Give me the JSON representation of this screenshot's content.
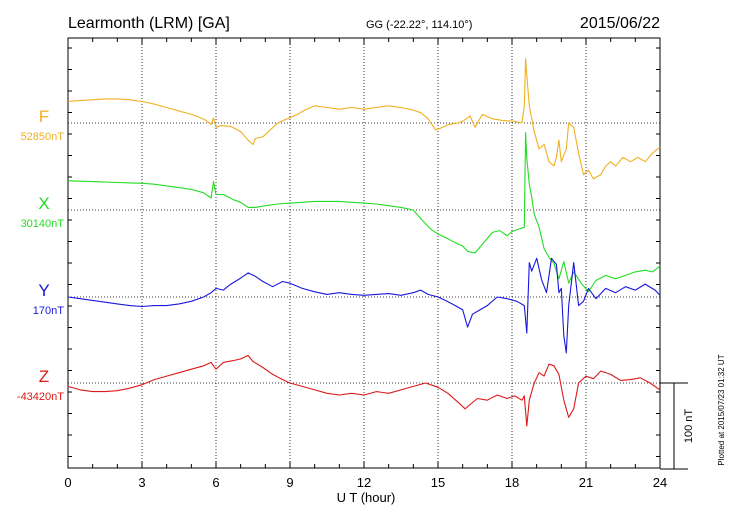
{
  "header": {
    "station": "Learmonth (LRM)  [GA]",
    "coords": "GG (-22.22°, 114.10°)",
    "date": "2015/06/22"
  },
  "footer": {
    "plotted": "Plotted at 2015/07/23 01:32 UT"
  },
  "scale": {
    "label": "100 nT"
  },
  "chart_data": {
    "type": "line",
    "xlabel": "U T (hour)",
    "xlim": [
      0,
      24
    ],
    "xticks": [
      "0",
      "3",
      "6",
      "9",
      "12",
      "15",
      "18",
      "21",
      "24"
    ],
    "grid": true,
    "y_units": "nT offset from baseline",
    "series": [
      {
        "name": "F",
        "baseline_label": "52850nT",
        "color": "#f0b020",
        "points": [
          [
            0,
            25
          ],
          [
            0.5,
            26
          ],
          [
            1,
            27
          ],
          [
            1.5,
            28
          ],
          [
            2,
            28
          ],
          [
            2.5,
            27
          ],
          [
            3,
            25
          ],
          [
            3.5,
            22
          ],
          [
            4,
            18
          ],
          [
            4.5,
            14
          ],
          [
            5,
            10
          ],
          [
            5.3,
            7
          ],
          [
            5.6,
            3
          ],
          [
            5.8,
            -2
          ],
          [
            5.9,
            6
          ],
          [
            6.0,
            -5
          ],
          [
            6.2,
            -3
          ],
          [
            6.6,
            -4
          ],
          [
            7,
            -10
          ],
          [
            7.3,
            -20
          ],
          [
            7.5,
            -25
          ],
          [
            7.6,
            -18
          ],
          [
            7.9,
            -16
          ],
          [
            8.2,
            -8
          ],
          [
            8.5,
            0
          ],
          [
            8.8,
            4
          ],
          [
            9,
            6
          ],
          [
            9.3,
            10
          ],
          [
            9.6,
            15
          ],
          [
            10,
            20
          ],
          [
            10.5,
            18
          ],
          [
            11,
            16
          ],
          [
            11.5,
            18
          ],
          [
            12,
            16
          ],
          [
            12.5,
            18
          ],
          [
            13,
            20
          ],
          [
            13.5,
            18
          ],
          [
            14,
            15
          ],
          [
            14.3,
            12
          ],
          [
            14.6,
            5
          ],
          [
            14.9,
            -8
          ],
          [
            15.1,
            -6
          ],
          [
            15.4,
            -2
          ],
          [
            15.8,
            0
          ],
          [
            16,
            2
          ],
          [
            16.3,
            8
          ],
          [
            16.5,
            -5
          ],
          [
            16.8,
            10
          ],
          [
            17.2,
            5
          ],
          [
            17.6,
            3
          ],
          [
            18.1,
            2
          ],
          [
            18.4,
            0
          ],
          [
            18.5,
            20
          ],
          [
            18.55,
            75
          ],
          [
            18.6,
            55
          ],
          [
            18.7,
            20
          ],
          [
            18.9,
            -10
          ],
          [
            19.1,
            -30
          ],
          [
            19.3,
            -25
          ],
          [
            19.5,
            -45
          ],
          [
            19.7,
            -50
          ],
          [
            19.8,
            -40
          ],
          [
            19.9,
            -20
          ],
          [
            20.0,
            -45
          ],
          [
            20.2,
            -30
          ],
          [
            20.3,
            0
          ],
          [
            20.5,
            -5
          ],
          [
            20.7,
            -35
          ],
          [
            20.9,
            -60
          ],
          [
            21.1,
            -55
          ],
          [
            21.3,
            -65
          ],
          [
            21.6,
            -60
          ],
          [
            21.8,
            -50
          ],
          [
            22.0,
            -45
          ],
          [
            22.2,
            -50
          ],
          [
            22.5,
            -40
          ],
          [
            22.8,
            -45
          ],
          [
            23.1,
            -40
          ],
          [
            23.4,
            -45
          ],
          [
            23.7,
            -35
          ],
          [
            24,
            -28
          ]
        ]
      },
      {
        "name": "X",
        "baseline_label": "30140nT",
        "color": "#22dd22",
        "points": [
          [
            0,
            34
          ],
          [
            1,
            33
          ],
          [
            2,
            32
          ],
          [
            3,
            31
          ],
          [
            3.5,
            30
          ],
          [
            4,
            28
          ],
          [
            4.5,
            26
          ],
          [
            5,
            24
          ],
          [
            5.5,
            20
          ],
          [
            5.8,
            14
          ],
          [
            5.9,
            33
          ],
          [
            6.0,
            18
          ],
          [
            6.3,
            18
          ],
          [
            6.7,
            12
          ],
          [
            7,
            9
          ],
          [
            7.3,
            3
          ],
          [
            7.6,
            3
          ],
          [
            8,
            5
          ],
          [
            8.5,
            7
          ],
          [
            9,
            8
          ],
          [
            9.5,
            9
          ],
          [
            10,
            10
          ],
          [
            10.5,
            10
          ],
          [
            11,
            10
          ],
          [
            11.5,
            9
          ],
          [
            12,
            8
          ],
          [
            12.5,
            7
          ],
          [
            13,
            5
          ],
          [
            13.5,
            3
          ],
          [
            14,
            0
          ],
          [
            14.3,
            -10
          ],
          [
            14.7,
            -22
          ],
          [
            15,
            -28
          ],
          [
            15.3,
            -32
          ],
          [
            15.7,
            -38
          ],
          [
            16,
            -42
          ],
          [
            16.2,
            -48
          ],
          [
            16.5,
            -50
          ],
          [
            16.8,
            -40
          ],
          [
            17.2,
            -26
          ],
          [
            17.5,
            -24
          ],
          [
            17.8,
            -30
          ],
          [
            18.0,
            -25
          ],
          [
            18.3,
            -22
          ],
          [
            18.5,
            -20
          ],
          [
            18.55,
            90
          ],
          [
            18.6,
            60
          ],
          [
            18.7,
            30
          ],
          [
            18.8,
            15
          ],
          [
            18.9,
            -5
          ],
          [
            19.1,
            -20
          ],
          [
            19.3,
            -45
          ],
          [
            19.5,
            -55
          ],
          [
            19.7,
            -62
          ],
          [
            19.9,
            -80
          ],
          [
            20.1,
            -60
          ],
          [
            20.3,
            -85
          ],
          [
            20.5,
            -72
          ],
          [
            20.8,
            -85
          ],
          [
            21.1,
            -95
          ],
          [
            21.4,
            -82
          ],
          [
            21.8,
            -76
          ],
          [
            22.2,
            -80
          ],
          [
            22.6,
            -76
          ],
          [
            23.0,
            -72
          ],
          [
            23.4,
            -70
          ],
          [
            23.7,
            -72
          ],
          [
            24,
            -65
          ]
        ]
      },
      {
        "name": "Y",
        "baseline_label": "170nT",
        "color": "#1818dd",
        "points": [
          [
            0,
            0
          ],
          [
            0.5,
            -2
          ],
          [
            1,
            -4
          ],
          [
            1.5,
            -6
          ],
          [
            2,
            -8
          ],
          [
            2.5,
            -10
          ],
          [
            3,
            -11
          ],
          [
            3.5,
            -10
          ],
          [
            4,
            -10
          ],
          [
            4.5,
            -8
          ],
          [
            5,
            -5
          ],
          [
            5.5,
            0
          ],
          [
            5.8,
            5
          ],
          [
            6.0,
            10
          ],
          [
            6.3,
            8
          ],
          [
            6.6,
            15
          ],
          [
            7,
            22
          ],
          [
            7.3,
            28
          ],
          [
            7.6,
            24
          ],
          [
            7.9,
            18
          ],
          [
            8.3,
            12
          ],
          [
            8.7,
            18
          ],
          [
            9,
            16
          ],
          [
            9.5,
            10
          ],
          [
            10,
            6
          ],
          [
            10.5,
            3
          ],
          [
            11,
            5
          ],
          [
            11.5,
            3
          ],
          [
            12,
            2
          ],
          [
            12.5,
            3
          ],
          [
            13,
            4
          ],
          [
            13.5,
            2
          ],
          [
            14,
            5
          ],
          [
            14.3,
            8
          ],
          [
            14.6,
            3
          ],
          [
            15,
            0
          ],
          [
            15.3,
            -4
          ],
          [
            15.7,
            -10
          ],
          [
            16,
            -15
          ],
          [
            16.2,
            -35
          ],
          [
            16.4,
            -20
          ],
          [
            16.7,
            -15
          ],
          [
            17,
            -10
          ],
          [
            17.4,
            0
          ],
          [
            17.8,
            -2
          ],
          [
            18.2,
            -5
          ],
          [
            18.5,
            -10
          ],
          [
            18.6,
            -42
          ],
          [
            18.7,
            40
          ],
          [
            18.8,
            30
          ],
          [
            19.0,
            45
          ],
          [
            19.2,
            20
          ],
          [
            19.4,
            5
          ],
          [
            19.6,
            45
          ],
          [
            19.8,
            38
          ],
          [
            19.9,
            5
          ],
          [
            20.0,
            10
          ],
          [
            20.1,
            -45
          ],
          [
            20.2,
            -65
          ],
          [
            20.3,
            -10
          ],
          [
            20.5,
            40
          ],
          [
            20.7,
            -10
          ],
          [
            20.9,
            -5
          ],
          [
            21.1,
            10
          ],
          [
            21.4,
            -2
          ],
          [
            21.8,
            10
          ],
          [
            22.2,
            5
          ],
          [
            22.6,
            12
          ],
          [
            23.0,
            8
          ],
          [
            23.4,
            15
          ],
          [
            23.8,
            8
          ],
          [
            24,
            2
          ]
        ]
      },
      {
        "name": "Z",
        "baseline_label": "-43420nT",
        "color": "#dd1818",
        "points": [
          [
            0,
            -4
          ],
          [
            0.5,
            -8
          ],
          [
            1,
            -10
          ],
          [
            1.5,
            -10
          ],
          [
            2,
            -9
          ],
          [
            2.5,
            -6
          ],
          [
            3,
            -2
          ],
          [
            3.5,
            4
          ],
          [
            4,
            8
          ],
          [
            4.5,
            12
          ],
          [
            5,
            16
          ],
          [
            5.5,
            20
          ],
          [
            5.8,
            24
          ],
          [
            6.0,
            16
          ],
          [
            6.3,
            24
          ],
          [
            6.7,
            26
          ],
          [
            7,
            28
          ],
          [
            7.3,
            32
          ],
          [
            7.5,
            25
          ],
          [
            7.9,
            18
          ],
          [
            8.3,
            10
          ],
          [
            8.7,
            4
          ],
          [
            9,
            0
          ],
          [
            9.5,
            -4
          ],
          [
            10,
            -8
          ],
          [
            10.5,
            -12
          ],
          [
            11,
            -14
          ],
          [
            11.5,
            -12
          ],
          [
            12,
            -14
          ],
          [
            12.5,
            -10
          ],
          [
            13,
            -12
          ],
          [
            13.5,
            -8
          ],
          [
            14,
            -4
          ],
          [
            14.5,
            0
          ],
          [
            15,
            -5
          ],
          [
            15.4,
            -12
          ],
          [
            15.8,
            -22
          ],
          [
            16.1,
            -30
          ],
          [
            16.3,
            -25
          ],
          [
            16.6,
            -18
          ],
          [
            17,
            -20
          ],
          [
            17.4,
            -14
          ],
          [
            17.8,
            -18
          ],
          [
            18.1,
            -15
          ],
          [
            18.4,
            -20
          ],
          [
            18.5,
            -15
          ],
          [
            18.6,
            -50
          ],
          [
            18.7,
            -20
          ],
          [
            18.9,
            0
          ],
          [
            19.1,
            12
          ],
          [
            19.3,
            8
          ],
          [
            19.5,
            22
          ],
          [
            19.7,
            20
          ],
          [
            19.9,
            10
          ],
          [
            20.1,
            -20
          ],
          [
            20.3,
            -40
          ],
          [
            20.5,
            -30
          ],
          [
            20.7,
            0
          ],
          [
            21.0,
            8
          ],
          [
            21.3,
            5
          ],
          [
            21.6,
            14
          ],
          [
            22,
            10
          ],
          [
            22.4,
            3
          ],
          [
            22.8,
            4
          ],
          [
            23.2,
            6
          ],
          [
            23.6,
            0
          ],
          [
            24,
            -8
          ]
        ]
      }
    ]
  }
}
